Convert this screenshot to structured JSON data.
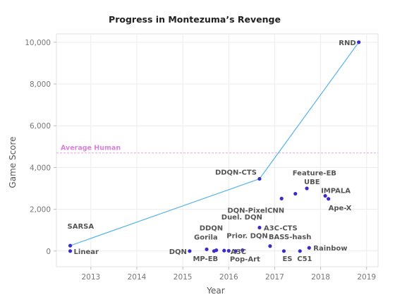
{
  "chart_data": {
    "type": "scatter",
    "title": "Progress in Montezuma’s Revenge",
    "xlabel": "Year",
    "ylabel": "Game Score",
    "xlim": [
      2012.25,
      2019.25
    ],
    "ylim": [
      -750,
      10400
    ],
    "x_ticks": [
      2013,
      2014,
      2015,
      2016,
      2017,
      2018,
      2019
    ],
    "y_ticks": [
      0,
      2000,
      4000,
      6000,
      8000,
      10000
    ],
    "y_tick_labels": [
      "0",
      "2,000",
      "4,000",
      "6,000",
      "8,000",
      "10,000"
    ],
    "grid": true,
    "point_color": "#3b2cc8",
    "frontier_color": "#56b4e9",
    "reference_color": "#e6a3e6",
    "reference_line": {
      "label": "Average Human",
      "y": 4700
    },
    "points": [
      {
        "label": "SARSA",
        "x": 2012.55,
        "y": 259
      },
      {
        "label": "Linear",
        "x": 2012.55,
        "y": 0
      },
      {
        "label": "DQN",
        "x": 2015.15,
        "y": 0
      },
      {
        "label": "Gorila",
        "x": 2015.52,
        "y": 84
      },
      {
        "label": "MP-EB",
        "x": 2015.68,
        "y": 0
      },
      {
        "label": "DDQN",
        "x": 2015.73,
        "y": 42
      },
      {
        "label": "Duel. DQN",
        "x": 2015.9,
        "y": 22
      },
      {
        "label": "Prior. DQN",
        "x": 2016.0,
        "y": 13
      },
      {
        "label": "A3C",
        "x": 2016.15,
        "y": 0
      },
      {
        "label": "Pop-Art",
        "x": 2016.3,
        "y": 41
      },
      {
        "label": "DDQN-CTS",
        "x": 2016.67,
        "y": 3459
      },
      {
        "label": "A3C-CTS",
        "x": 2016.67,
        "y": 1124
      },
      {
        "label": "BASS-hash",
        "x": 2016.9,
        "y": 238
      },
      {
        "label": "DQN-PixelCNN",
        "x": 2017.15,
        "y": 2514
      },
      {
        "label": "ES",
        "x": 2017.2,
        "y": 0
      },
      {
        "label": "Feature-EB",
        "x": 2017.45,
        "y": 2745
      },
      {
        "label": "C51",
        "x": 2017.55,
        "y": 0
      },
      {
        "label": "UBE",
        "x": 2017.7,
        "y": 3000
      },
      {
        "label": "Rainbow",
        "x": 2017.75,
        "y": 154
      },
      {
        "label": "IMPALA",
        "x": 2018.1,
        "y": 2643
      },
      {
        "label": "Ape-X",
        "x": 2018.17,
        "y": 2500
      },
      {
        "label": "RND",
        "x": 2018.83,
        "y": 10000
      }
    ],
    "frontier": [
      "SARSA",
      "DDQN-CTS",
      "RND"
    ]
  }
}
